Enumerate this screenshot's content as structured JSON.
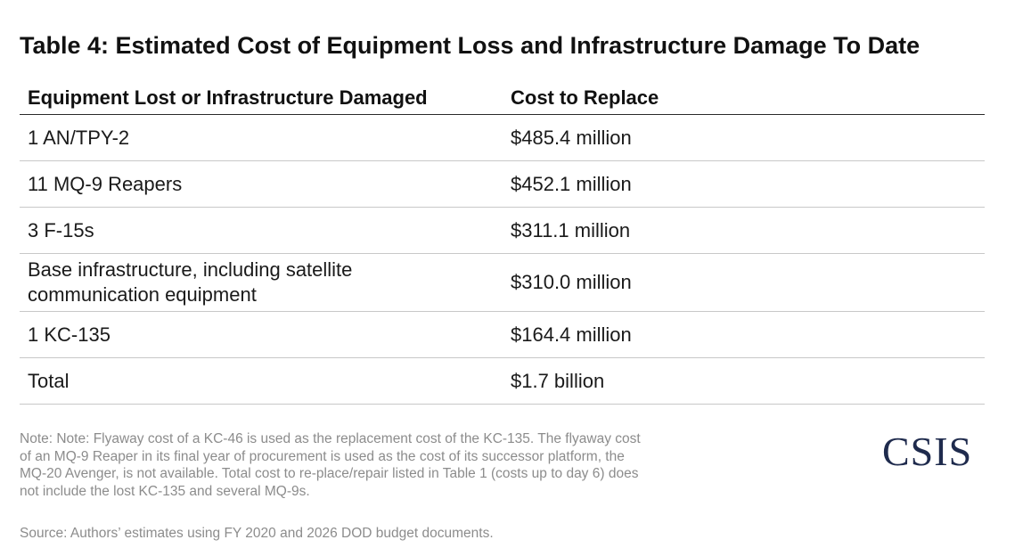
{
  "title": "Table 4: Estimated Cost of Equipment Loss and Infrastructure Damage To Date",
  "table": {
    "headers": [
      "Equipment Lost or Infrastructure Damaged",
      "Cost to Replace"
    ],
    "rows": [
      {
        "item": "1 AN/TPY-2",
        "cost": "$485.4 million"
      },
      {
        "item": "11 MQ-9 Reapers",
        "cost": "$452.1 million"
      },
      {
        "item": "3 F-15s",
        "cost": "$311.1 million"
      },
      {
        "item": "Base infrastructure, including satellite communication equipment",
        "cost": "$310.0 million"
      },
      {
        "item": "1 KC-135",
        "cost": "$164.4 million"
      },
      {
        "item": "Total",
        "cost": "$1.7 billion"
      }
    ]
  },
  "note": "Note: Note: Flyaway cost of a KC-46 is used as the replacement cost of the KC-135. The flyaway cost of an MQ-9 Reaper in its final year of procurement  is used as the cost of its successor platform, the MQ-20 Avenger, is not available. Total cost to re-place/repair listed in Table 1 (costs up to day 6) does not include the lost KC-135 and several MQ-9s.",
  "source": "Source: Authors’ estimates using FY 2020 and 2026 DOD budget documents.",
  "logo_text": "CSIS",
  "colors": {
    "logo": "#1f2b4d",
    "note": "#8c8c8c",
    "text": "#1a1a1a"
  }
}
